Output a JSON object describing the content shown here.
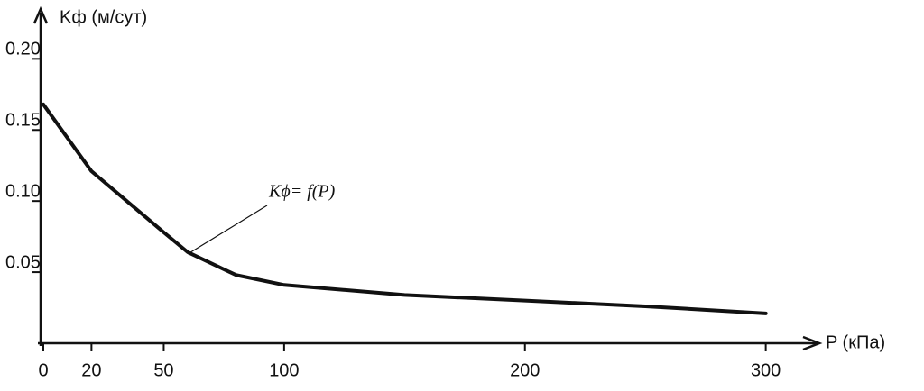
{
  "chart_data": {
    "type": "line",
    "y_label": "Kф (м/сут)",
    "x_label": "P (кПа)",
    "annotation": "Kϕ= f(P)",
    "x": [
      0,
      20,
      50,
      60,
      80,
      100,
      150,
      200,
      250,
      300
    ],
    "series": [
      {
        "name": "Kϕ= f(P)",
        "color": "#111111",
        "values": [
          0.168,
          0.121,
          0.078,
          0.064,
          0.048,
          0.041,
          0.034,
          0.03,
          0.026,
          0.021
        ]
      }
    ],
    "xlim": [
      0,
      320
    ],
    "ylim": [
      0,
      0.23
    ],
    "xticks": [
      0,
      20,
      50,
      100,
      200,
      300
    ],
    "yticks": [
      0.05,
      {
        "value": 0.1,
        "label": "0.10"
      },
      0.15,
      {
        "value": 0.2,
        "label": "0.20"
      }
    ],
    "grid": false
  }
}
